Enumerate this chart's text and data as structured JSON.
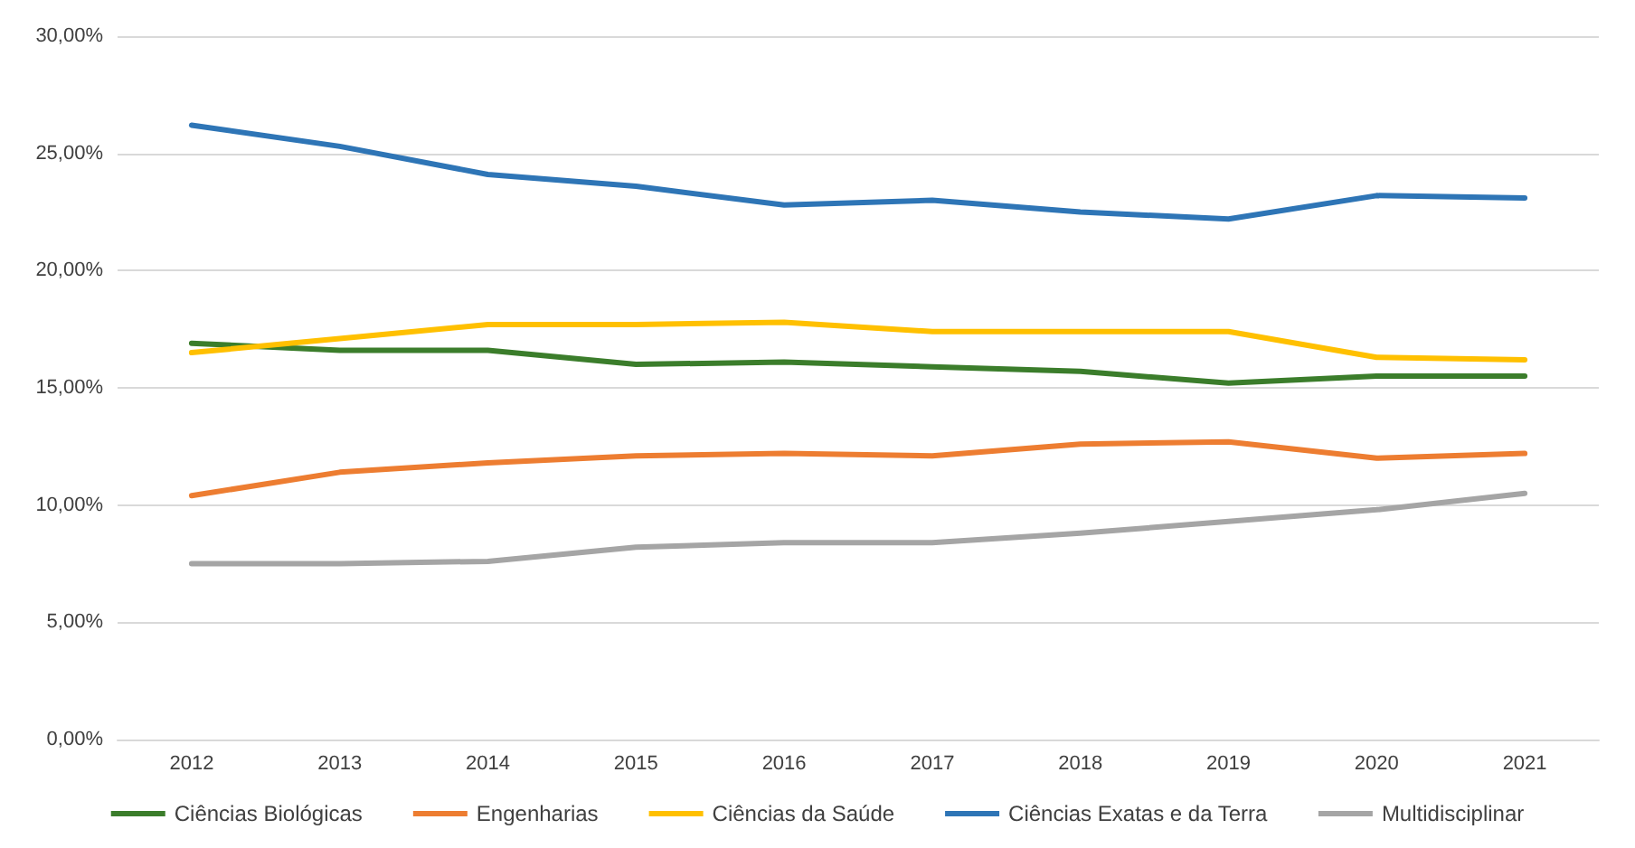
{
  "chart_data": {
    "type": "line",
    "categories": [
      "2012",
      "2013",
      "2014",
      "2015",
      "2016",
      "2017",
      "2018",
      "2019",
      "2020",
      "2021"
    ],
    "series": [
      {
        "name": "Ciências Biológicas",
        "color": "#3b7d2b",
        "values": [
          16.9,
          16.6,
          16.6,
          16.0,
          16.1,
          15.9,
          15.7,
          15.2,
          15.5,
          15.5
        ]
      },
      {
        "name": "Engenharias",
        "color": "#ed7d31",
        "values": [
          10.4,
          11.4,
          11.8,
          12.1,
          12.2,
          12.1,
          12.6,
          12.7,
          12.0,
          12.2
        ]
      },
      {
        "name": "Ciências da Saúde",
        "color": "#ffc000",
        "values": [
          16.5,
          17.1,
          17.7,
          17.7,
          17.8,
          17.4,
          17.4,
          17.4,
          16.3,
          16.2
        ]
      },
      {
        "name": "Ciências Exatas e da Terra",
        "color": "#2e75b6",
        "values": [
          26.2,
          25.3,
          24.1,
          23.6,
          22.8,
          23.0,
          22.5,
          22.2,
          23.2,
          23.1
        ]
      },
      {
        "name": "Multidisciplinar",
        "color": "#a5a5a5",
        "values": [
          7.5,
          7.5,
          7.6,
          8.2,
          8.4,
          8.4,
          8.8,
          9.3,
          9.8,
          10.5
        ]
      }
    ],
    "ylim": [
      0,
      30
    ],
    "yticks": [
      {
        "value": 0,
        "label": "0,00%"
      },
      {
        "value": 5,
        "label": "5,00%"
      },
      {
        "value": 10,
        "label": "10,00%"
      },
      {
        "value": 15,
        "label": "15,00%"
      },
      {
        "value": 20,
        "label": "20,00%"
      },
      {
        "value": 25,
        "label": "25,00%"
      },
      {
        "value": 30,
        "label": "30,00%"
      }
    ],
    "grid": "y",
    "legend": "bottom",
    "marker": "none",
    "line_style": "solid"
  }
}
